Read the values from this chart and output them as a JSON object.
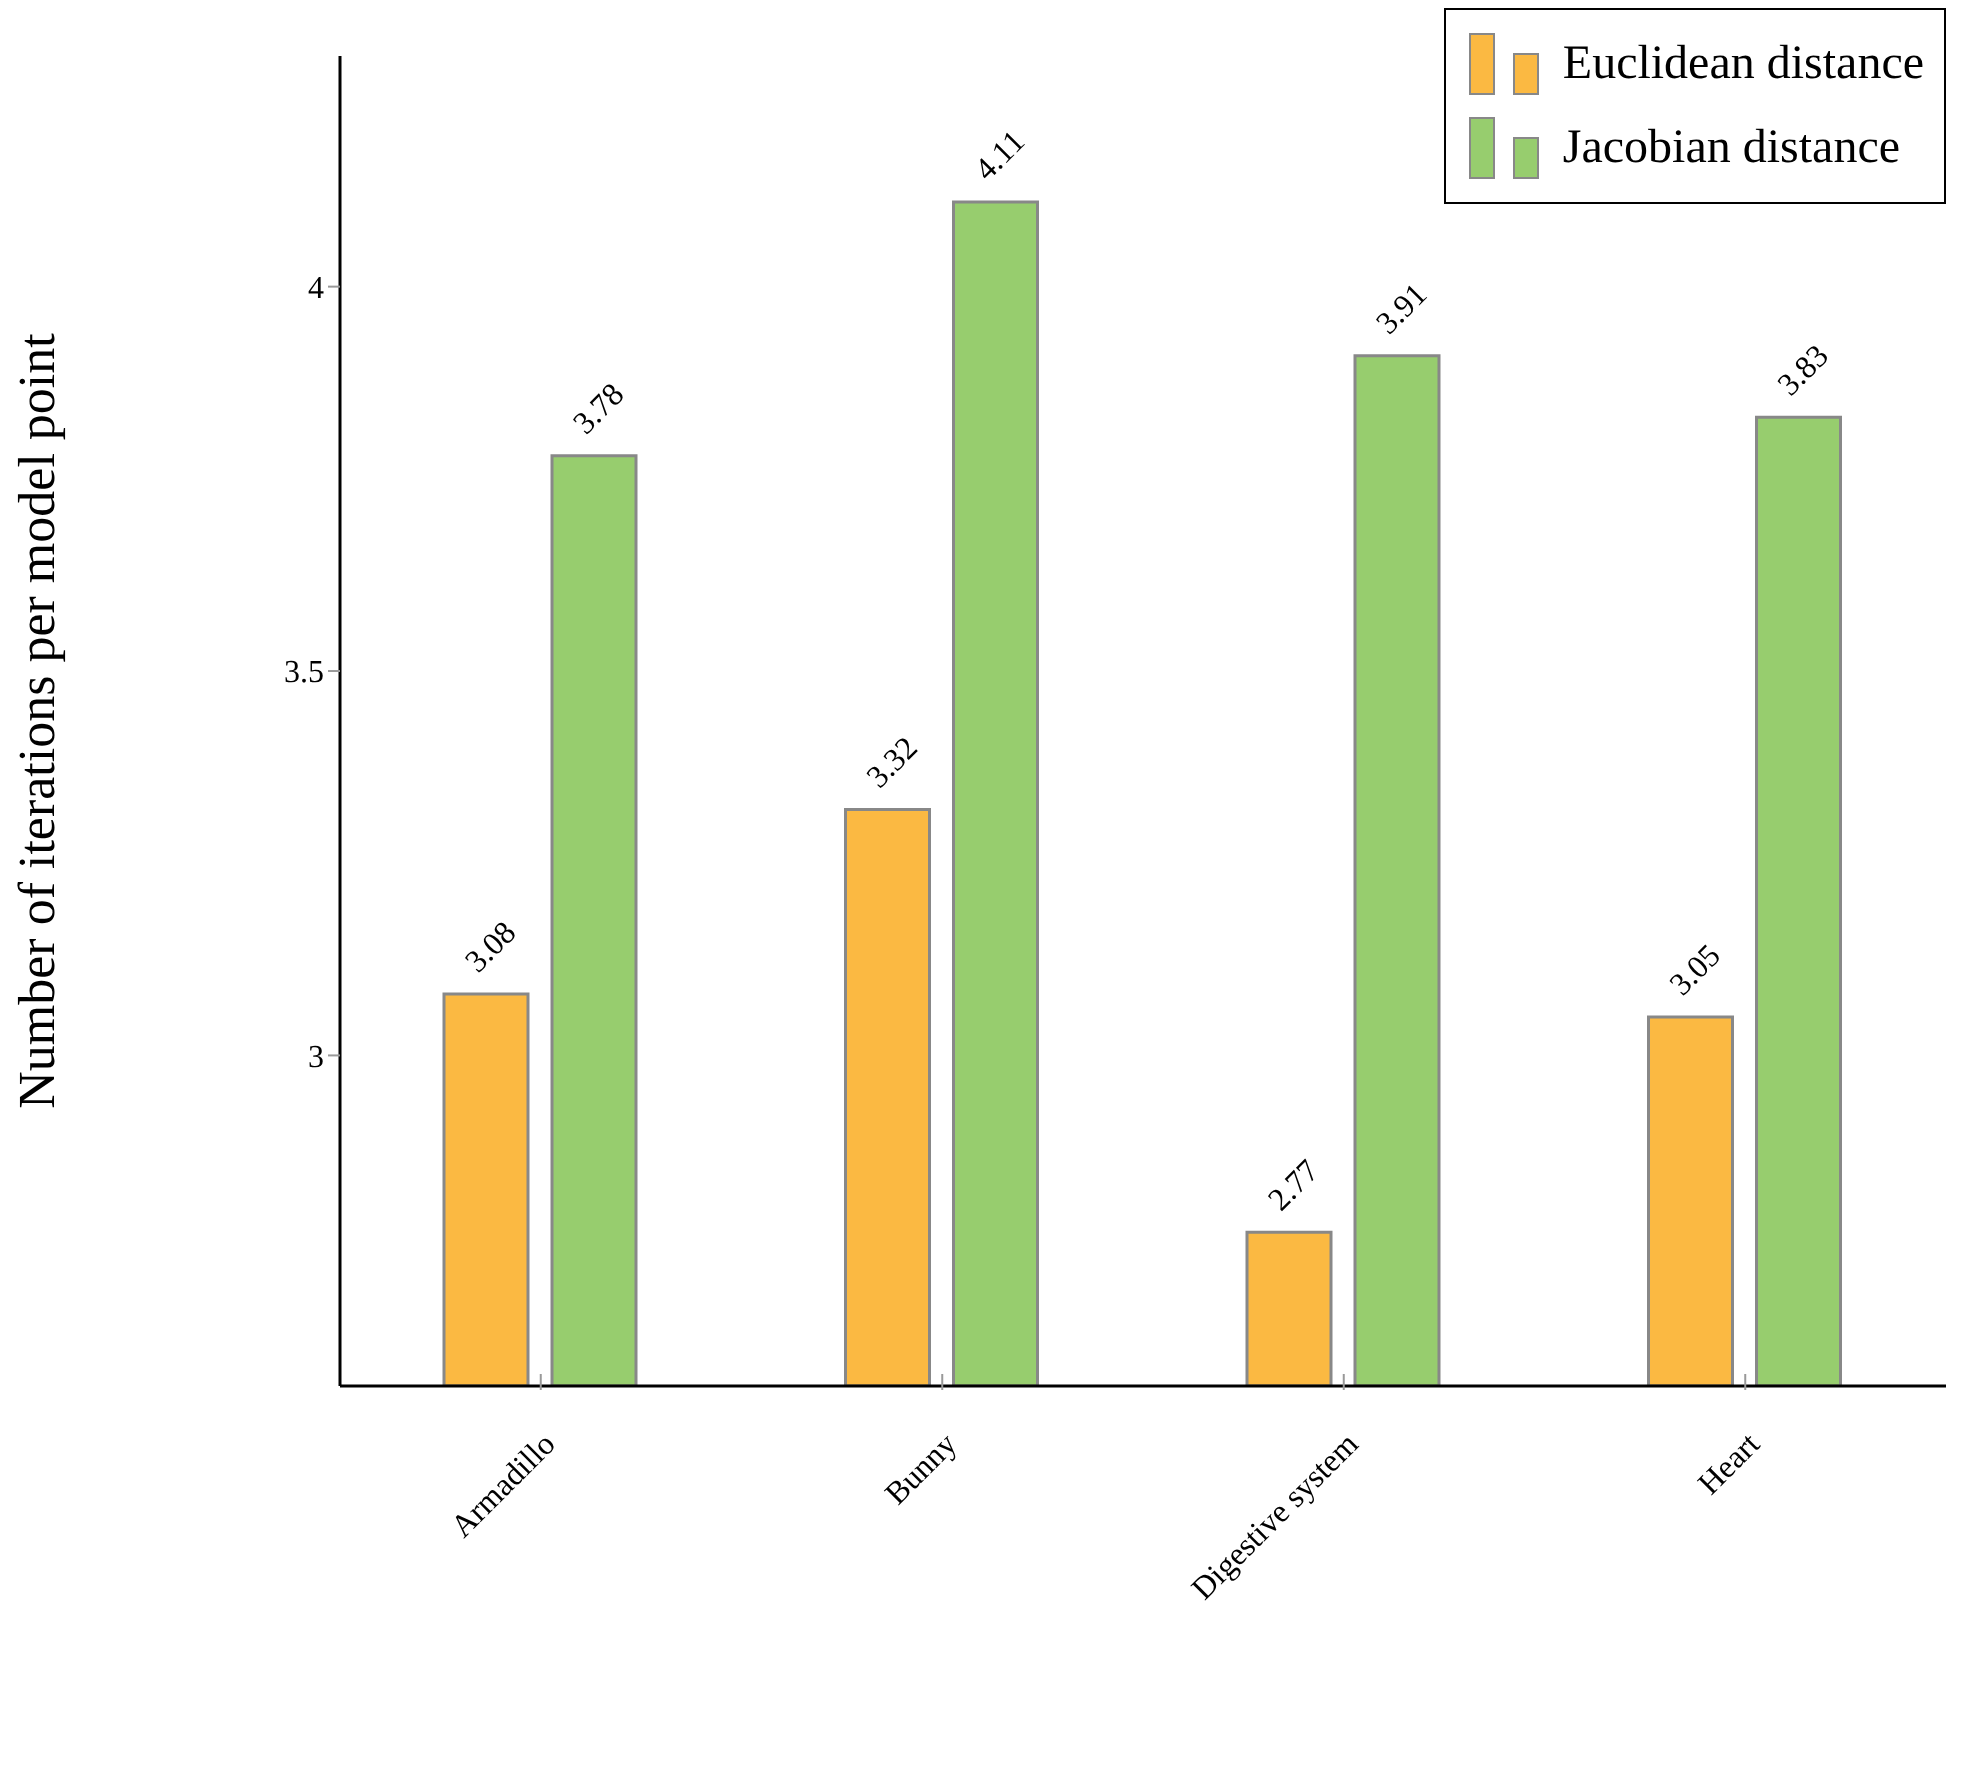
{
  "chart_data": {
    "type": "bar",
    "ylabel": "Number of iterations per model point",
    "categories": [
      "Armadillo",
      "Bunny",
      "Digestive system",
      "Heart"
    ],
    "series": [
      {
        "name": "Euclidean distance",
        "color": "#fbb942",
        "values": [
          3.08,
          3.32,
          2.77,
          3.05
        ]
      },
      {
        "name": "Jacobian distance",
        "color": "#97cd6e",
        "values": [
          3.78,
          4.11,
          3.91,
          3.83
        ]
      }
    ],
    "ylim": [
      2.57,
      4.3
    ],
    "yticks": [
      3,
      3.5,
      4
    ],
    "data_labels": true,
    "legend": "top right",
    "grid": false
  }
}
